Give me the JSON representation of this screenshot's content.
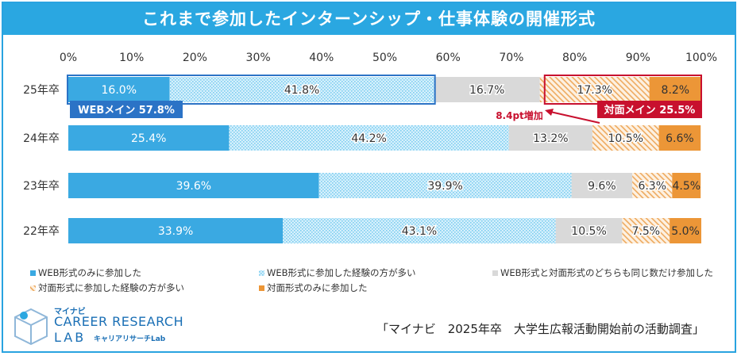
{
  "title": "これまで参加したインターンシップ・仕事体験の開催形式",
  "chart_data": {
    "type": "bar",
    "orientation": "horizontal",
    "stacked": true,
    "xlim": [
      0,
      100
    ],
    "x_ticks": [
      "0%",
      "10%",
      "20%",
      "30%",
      "40%",
      "50%",
      "60%",
      "70%",
      "80%",
      "90%",
      "100%"
    ],
    "categories": [
      "25年卒",
      "24年卒",
      "23年卒",
      "22年卒"
    ],
    "series": [
      {
        "name": "WEB形式のみに参加した",
        "color": "#3aa9e2",
        "pattern": "solid",
        "values": [
          16.0,
          25.4,
          39.6,
          33.9
        ],
        "labels": [
          "16.0%",
          "25.4%",
          "39.6%",
          "33.9%"
        ]
      },
      {
        "name": "WEB形式に参加した経験の方が多い",
        "color": "#bfe6fa",
        "pattern": "dots",
        "values": [
          41.8,
          44.2,
          39.9,
          43.1
        ],
        "labels": [
          "41.8%",
          "44.2%",
          "39.9%",
          "43.1%"
        ]
      },
      {
        "name": "WEB形式と対面形式のどちらも同じ数だけ参加した",
        "color": "#d9d9d9",
        "pattern": "solid",
        "values": [
          16.7,
          13.2,
          9.6,
          10.5
        ],
        "labels": [
          "16.7%",
          "13.2%",
          "9.6%",
          "10.5%"
        ]
      },
      {
        "name": "対面形式に参加した経験の方が多い",
        "color": "#f0b97a",
        "pattern": "hatch",
        "values": [
          17.3,
          10.5,
          6.3,
          7.5
        ],
        "labels": [
          "17.3%",
          "10.5%",
          "6.3%",
          "7.5%"
        ]
      },
      {
        "name": "対面形式のみに参加した",
        "color": "#ec9637",
        "pattern": "solid",
        "values": [
          8.2,
          6.6,
          4.5,
          5.0
        ],
        "labels": [
          "8.2%",
          "6.6%",
          "4.5%",
          "5.0%"
        ]
      }
    ],
    "annotations": {
      "web_main": {
        "label": "WEBメイン 57.8%",
        "color": "#2b73c6",
        "category": "25年卒",
        "from": 0,
        "to": 57.8
      },
      "face_main": {
        "label": "対面メイン 25.5%",
        "color": "#c8102e",
        "category": "25年卒",
        "from": 74.5,
        "to": 100
      },
      "increase": {
        "label": "8.4pt増加",
        "color": "#c8102e"
      }
    }
  },
  "logo": {
    "mynavi": "マイナビ",
    "line1": "CAREER RESEARCH",
    "line2": "LAB",
    "sub": "キャリアリサーチLab"
  },
  "source": "「マイナビ　2025年卒　大学生広報活動開始前の活動調査」"
}
